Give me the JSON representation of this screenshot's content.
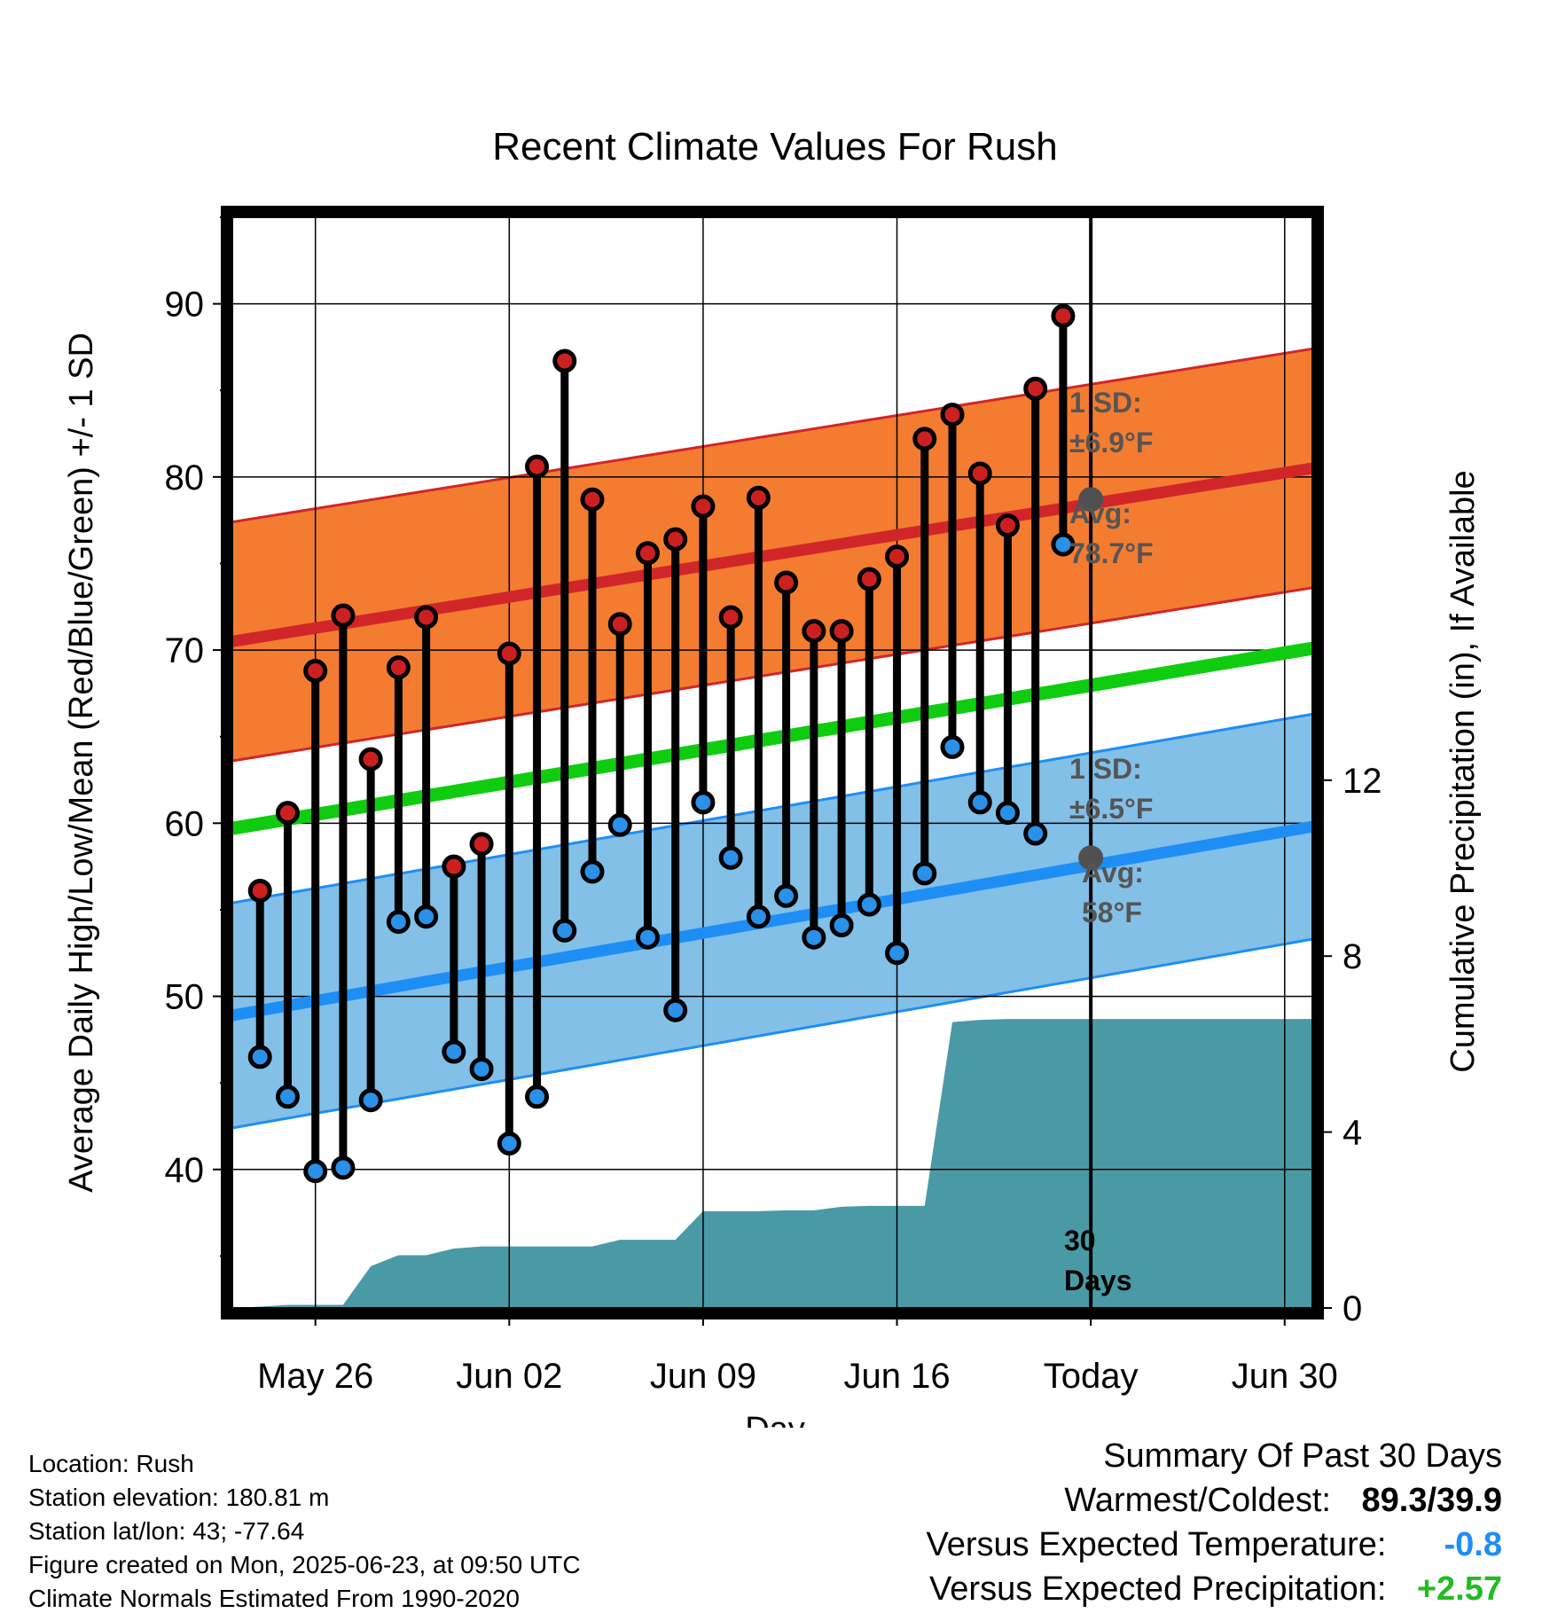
{
  "chart_data": {
    "type": "line",
    "title": "Recent Climate Values For Rush",
    "xlabel": "Day",
    "ylabel_left": "Average Daily High/Low/Mean (Red/Blue/Green) +/- 1 SD",
    "ylabel_right": "Cumulative Precipitation (in), If Available",
    "ylim": [
      32,
      95
    ],
    "ylim_right": [
      0,
      24.8
    ],
    "y_ticks": [
      40,
      50,
      60,
      70,
      80,
      90
    ],
    "y_ticks_right": [
      0,
      4,
      8,
      12
    ],
    "x_range": [
      "2025-05-23",
      "2025-07-01"
    ],
    "x_ticks": [
      {
        "date": "2025-05-26",
        "label": "May 26"
      },
      {
        "date": "2025-06-02",
        "label": "Jun 02"
      },
      {
        "date": "2025-06-09",
        "label": "Jun 09"
      },
      {
        "date": "2025-06-16",
        "label": "Jun 16"
      },
      {
        "date": "2025-06-23",
        "label": "Today"
      },
      {
        "date": "2025-06-30",
        "label": "Jun 30"
      }
    ],
    "grid": true,
    "today": "2025-06-23",
    "daily": {
      "dates": [
        "2025-05-24",
        "2025-05-25",
        "2025-05-26",
        "2025-05-27",
        "2025-05-28",
        "2025-05-29",
        "2025-05-30",
        "2025-05-31",
        "2025-06-01",
        "2025-06-02",
        "2025-06-03",
        "2025-06-04",
        "2025-06-05",
        "2025-06-06",
        "2025-06-07",
        "2025-06-08",
        "2025-06-09",
        "2025-06-10",
        "2025-06-11",
        "2025-06-12",
        "2025-06-13",
        "2025-06-14",
        "2025-06-15",
        "2025-06-16",
        "2025-06-17",
        "2025-06-18",
        "2025-06-19",
        "2025-06-20",
        "2025-06-21",
        "2025-06-22"
      ],
      "highs": [
        56.1,
        60.6,
        68.8,
        72.0,
        63.7,
        69.0,
        71.9,
        57.5,
        58.8,
        69.8,
        80.6,
        86.7,
        78.7,
        71.5,
        75.6,
        76.4,
        78.3,
        71.9,
        78.8,
        73.9,
        71.1,
        71.1,
        74.1,
        75.4,
        82.2,
        83.6,
        80.2,
        77.2,
        85.1,
        89.3
      ],
      "lows": [
        46.5,
        44.2,
        39.9,
        40.1,
        44.0,
        54.3,
        54.6,
        46.8,
        45.8,
        41.5,
        44.2,
        53.8,
        57.2,
        59.9,
        53.4,
        49.2,
        61.2,
        58.0,
        54.6,
        55.8,
        53.4,
        54.1,
        55.3,
        52.5,
        57.1,
        64.4,
        61.2,
        60.6,
        59.4,
        76.1
      ]
    },
    "normals": {
      "start_date": "2025-05-23",
      "end_date": "2025-07-01",
      "high_mean": [
        70.5,
        80.5
      ],
      "high_sd": 6.9,
      "low_mean": [
        48.9,
        59.8
      ],
      "low_sd": 6.5,
      "daily_mean": [
        59.7,
        70.1
      ],
      "high_mean_today": 78.7,
      "low_mean_today": 58.0
    },
    "precip": {
      "dates": [
        "2025-05-23",
        "2025-05-24",
        "2025-05-25",
        "2025-05-26",
        "2025-05-27",
        "2025-05-28",
        "2025-05-29",
        "2025-05-30",
        "2025-05-31",
        "2025-06-01",
        "2025-06-02",
        "2025-06-03",
        "2025-06-04",
        "2025-06-05",
        "2025-06-06",
        "2025-06-07",
        "2025-06-08",
        "2025-06-09",
        "2025-06-10",
        "2025-06-11",
        "2025-06-12",
        "2025-06-13",
        "2025-06-14",
        "2025-06-15",
        "2025-06-16",
        "2025-06-17",
        "2025-06-18",
        "2025-06-19",
        "2025-06-20",
        "2025-06-21",
        "2025-06-22",
        "2025-06-23",
        "2025-07-01"
      ],
      "cumulative": [
        0,
        0.03,
        0.07,
        0.07,
        0.07,
        0.95,
        1.2,
        1.2,
        1.35,
        1.4,
        1.4,
        1.4,
        1.4,
        1.4,
        1.55,
        1.55,
        1.55,
        2.2,
        2.2,
        2.2,
        2.22,
        2.22,
        2.3,
        2.32,
        2.32,
        2.32,
        6.5,
        6.55,
        6.57,
        6.57,
        6.57,
        6.57,
        6.57
      ]
    },
    "annotations": {
      "high_sd_line1": "1 SD:",
      "high_sd_line2": "±6.9°F",
      "high_avg_line1": "Avg:",
      "high_avg_line2": "78.7°F",
      "low_sd_line1": "1 SD:",
      "low_sd_line2": "±6.5°F",
      "low_avg_line1": "Avg:",
      "low_avg_line2": "58°F",
      "days_line1": "30",
      "days_line2": "Days"
    },
    "colors": {
      "high_band": "#f47c30",
      "high_line": "#d0262a",
      "low_band": "#82c0e8",
      "low_line": "#1e8ef5",
      "mean_line": "#10cc10",
      "precip": "#4a9aa6",
      "high_dot": "#cc2020",
      "low_dot": "#2a90e8",
      "today_dot": "#505050"
    }
  },
  "footer": {
    "location": "Location: Rush",
    "elevation": "Station elevation: 180.81 m",
    "latlon": "Station lat/lon: 43; -77.64",
    "created": "Figure created on Mon, 2025-06-23, at 09:50 UTC",
    "normals": "Climate Normals Estimated From 1990-2020"
  },
  "summary": {
    "heading": "Summary Of Past 30 Days",
    "warm_cold_label": "Warmest/Coldest:",
    "warm_cold_value": "89.3/39.9",
    "temp_label": "Versus Expected Temperature:",
    "temp_value": "-0.8",
    "temp_color": "#1e8ef5",
    "precip_label": "Versus Expected Precipitation:",
    "precip_value": "+2.57",
    "precip_color": "#22bb22"
  }
}
